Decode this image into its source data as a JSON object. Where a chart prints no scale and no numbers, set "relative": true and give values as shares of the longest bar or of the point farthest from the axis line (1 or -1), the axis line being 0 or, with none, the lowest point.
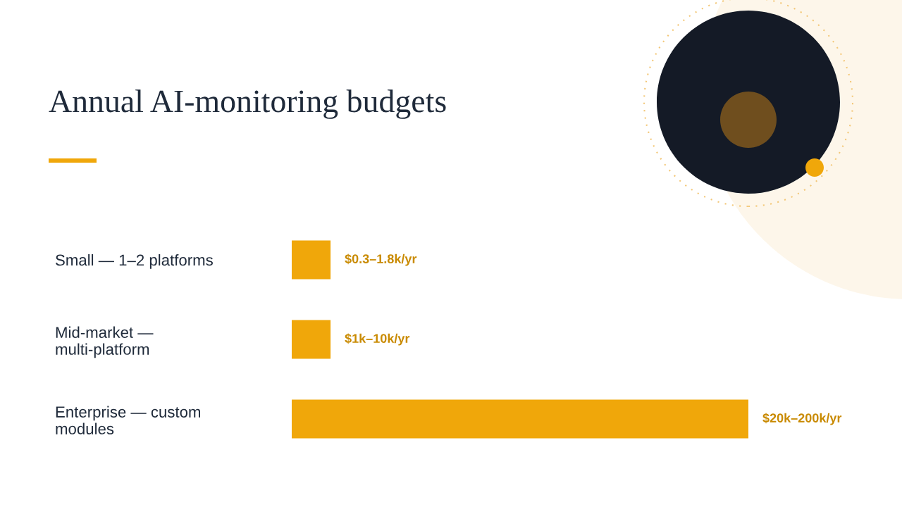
{
  "chart_data": {
    "type": "bar",
    "orientation": "horizontal",
    "relative": true,
    "title": "Annual AI-monitoring budgets",
    "categories": [
      "Small — 1–2 platforms",
      "Mid-market — multi-platform",
      "Enterprise — custom modules"
    ],
    "values": [
      0.085,
      0.085,
      1
    ],
    "annotations": [
      "$0.3–1.8k/yr",
      "$1k–10k/yr",
      "$20k–200k/yr"
    ],
    "color": "#f0a70a"
  }
}
